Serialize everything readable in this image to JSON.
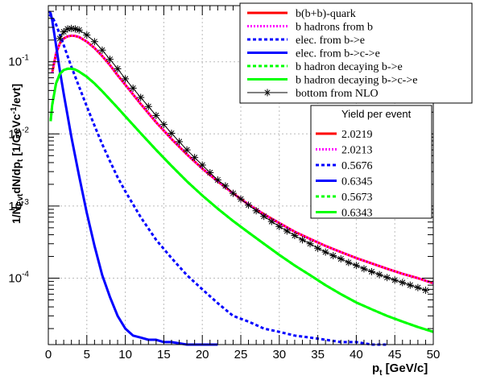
{
  "chart_data": {
    "type": "line",
    "xlabel_main": "p",
    "xlabel_sub": "t",
    "xlabel_rest": " [GeV/c]",
    "ylabel_text": "1/N_Evt dN/dp_t [1/GeVc^-1/evt]",
    "xlim": [
      0,
      50
    ],
    "ylim": [
      1.2e-05,
      0.6
    ],
    "yscale": "log",
    "grid": true,
    "x_ticks": [
      "0",
      "5",
      "10",
      "15",
      "20",
      "25",
      "30",
      "35",
      "40",
      "45",
      "50"
    ],
    "y_ticks": [
      {
        "v": 0.1,
        "m": "10",
        "e": "-1"
      },
      {
        "v": 0.01,
        "m": "10",
        "e": "-2"
      },
      {
        "v": 0.001,
        "m": "10",
        "e": "-3"
      },
      {
        "v": 0.0001,
        "m": "10",
        "e": "-4"
      }
    ],
    "series": [
      {
        "name": "b(b+b)-quark",
        "color": "#ff0000",
        "style": "solid",
        "x": [
          0.5,
          1,
          1.5,
          2,
          2.5,
          3,
          3.5,
          4,
          5,
          6,
          7,
          8,
          9,
          10,
          12,
          14,
          16,
          18,
          20,
          22,
          24,
          26,
          28,
          30,
          32,
          34,
          36,
          38,
          40,
          42,
          44,
          46,
          48,
          50
        ],
        "y": [
          0.07,
          0.13,
          0.18,
          0.21,
          0.225,
          0.23,
          0.228,
          0.22,
          0.19,
          0.155,
          0.12,
          0.09,
          0.065,
          0.048,
          0.026,
          0.0145,
          0.0085,
          0.0052,
          0.0033,
          0.0022,
          0.0015,
          0.00105,
          0.00077,
          0.00058,
          0.00044,
          0.00035,
          0.00028,
          0.00023,
          0.00019,
          0.00016,
          0.000135,
          0.000115,
          0.0001,
          8.5e-05
        ]
      },
      {
        "name": "b hadrons from b",
        "color": "#ff00ff",
        "style": "dotted",
        "x": [
          0.5,
          1,
          1.5,
          2,
          2.5,
          3,
          3.5,
          4,
          5,
          6,
          7,
          8,
          9,
          10,
          12,
          14,
          16,
          18,
          20,
          22,
          24,
          26,
          28,
          30,
          32,
          34,
          36,
          38,
          40,
          42,
          44,
          46,
          48,
          50
        ],
        "y": [
          0.07,
          0.13,
          0.18,
          0.21,
          0.225,
          0.23,
          0.228,
          0.22,
          0.19,
          0.155,
          0.12,
          0.09,
          0.065,
          0.048,
          0.026,
          0.0145,
          0.0085,
          0.0052,
          0.0033,
          0.0022,
          0.0015,
          0.00105,
          0.00077,
          0.00058,
          0.00044,
          0.00035,
          0.00028,
          0.00023,
          0.00019,
          0.00016,
          0.000135,
          0.000115,
          0.0001,
          8.5e-05
        ]
      },
      {
        "name": "elec. from b->e",
        "color": "#0000ff",
        "style": "dashed",
        "x": [
          0.1,
          0.5,
          1,
          2,
          3,
          4,
          5,
          6,
          7,
          8,
          9,
          10,
          12,
          14,
          16,
          18,
          20,
          22,
          24,
          26,
          28,
          30,
          32,
          34,
          36,
          38,
          40,
          42,
          44
        ],
        "y": [
          0.45,
          0.42,
          0.33,
          0.17,
          0.085,
          0.045,
          0.024,
          0.013,
          0.0072,
          0.0042,
          0.0025,
          0.0016,
          0.0007,
          0.00034,
          0.00019,
          0.00011,
          7e-05,
          4.5e-05,
          3e-05,
          2.5e-05,
          2e-05,
          1.8e-05,
          1.6e-05,
          1.5e-05,
          1.4e-05,
          1.3e-05,
          1.3e-05,
          1.2e-05,
          1.2e-05
        ]
      },
      {
        "name": "elec. from b->c->e",
        "color": "#0000ff",
        "style": "solid",
        "x": [
          0.1,
          0.3,
          0.5,
          1,
          1.5,
          2,
          3,
          4,
          5,
          6,
          7,
          8,
          9,
          10,
          11,
          12,
          13,
          14,
          15,
          16,
          18,
          20,
          22
        ],
        "y": [
          0.5,
          0.47,
          0.38,
          0.17,
          0.075,
          0.036,
          0.009,
          0.0026,
          0.0008,
          0.00028,
          0.00011,
          5.5e-05,
          3e-05,
          2e-05,
          1.6e-05,
          1.5e-05,
          1.4e-05,
          1.4e-05,
          1.3e-05,
          1.3e-05,
          1.2e-05,
          1.2e-05,
          1.2e-05
        ]
      },
      {
        "name": "b hadron decaying b->e",
        "color": "#00ff00",
        "style": "dashed",
        "x": [
          0.3,
          0.5,
          1,
          1.5,
          2,
          2.5,
          3,
          3.5,
          4,
          5,
          6,
          7,
          8,
          9,
          10,
          12,
          14,
          16,
          18,
          20,
          22,
          24,
          26,
          28,
          30,
          32,
          34,
          36,
          38,
          40,
          42,
          44,
          46,
          48,
          50
        ],
        "y": [
          0.015,
          0.025,
          0.05,
          0.068,
          0.077,
          0.08,
          0.08,
          0.078,
          0.073,
          0.062,
          0.05,
          0.039,
          0.03,
          0.023,
          0.0175,
          0.0102,
          0.006,
          0.0036,
          0.0022,
          0.0014,
          0.00092,
          0.00062,
          0.00043,
          0.0003,
          0.00021,
          0.00015,
          0.00011,
          8e-05,
          6e-05,
          4.6e-05,
          3.7e-05,
          3e-05,
          2.5e-05,
          2.1e-05,
          1.8e-05
        ]
      },
      {
        "name": "b hadron decaying b->c->e",
        "color": "#00ff00",
        "style": "solid",
        "x": [
          0.3,
          0.5,
          1,
          1.5,
          2,
          2.5,
          3,
          3.5,
          4,
          5,
          6,
          7,
          8,
          9,
          10,
          12,
          14,
          16,
          18,
          20,
          22,
          24,
          26,
          28,
          30,
          32,
          34,
          36,
          38,
          40,
          42,
          44,
          46,
          48,
          50
        ],
        "y": [
          0.015,
          0.025,
          0.05,
          0.068,
          0.077,
          0.08,
          0.08,
          0.078,
          0.073,
          0.062,
          0.05,
          0.039,
          0.03,
          0.023,
          0.0175,
          0.0102,
          0.006,
          0.0036,
          0.0022,
          0.0014,
          0.00092,
          0.00062,
          0.00043,
          0.0003,
          0.00021,
          0.00015,
          0.00011,
          8e-05,
          6e-05,
          4.6e-05,
          3.7e-05,
          3e-05,
          2.5e-05,
          2.1e-05,
          1.8e-05
        ]
      },
      {
        "name": "bottom from NLO",
        "color": "#000000",
        "style": "star",
        "x": [
          1.5,
          2,
          2.5,
          3,
          3.5,
          4,
          5,
          6,
          7,
          8,
          9,
          10,
          11,
          12,
          13,
          14,
          15,
          16,
          17,
          18,
          19,
          20,
          21,
          22,
          23,
          24,
          25,
          26,
          27,
          28,
          29,
          30,
          31,
          32,
          33,
          34,
          35,
          36,
          37,
          38,
          39,
          40,
          41,
          42,
          43,
          44,
          45,
          46,
          47,
          48,
          49
        ],
        "y": [
          0.21,
          0.26,
          0.285,
          0.29,
          0.285,
          0.275,
          0.235,
          0.19,
          0.145,
          0.108,
          0.08,
          0.058,
          0.043,
          0.032,
          0.024,
          0.018,
          0.0135,
          0.0102,
          0.0078,
          0.006,
          0.0047,
          0.0037,
          0.0029,
          0.0023,
          0.0019,
          0.0015,
          0.00125,
          0.00103,
          0.00086,
          0.00072,
          0.00061,
          0.00052,
          0.00045,
          0.00039,
          0.00034,
          0.0003,
          0.00026,
          0.00023,
          0.000205,
          0.000185,
          0.000165,
          0.00015,
          0.000135,
          0.000123,
          0.000112,
          0.000102,
          9.4e-05,
          8.7e-05,
          8e-05,
          7.4e-05,
          6.8e-05
        ]
      }
    ],
    "yields": {
      "title": "Yield per event",
      "values": [
        "2.0219",
        "2.0213",
        "0.5676",
        "0.6345",
        "0.5673",
        "0.6343"
      ]
    }
  }
}
